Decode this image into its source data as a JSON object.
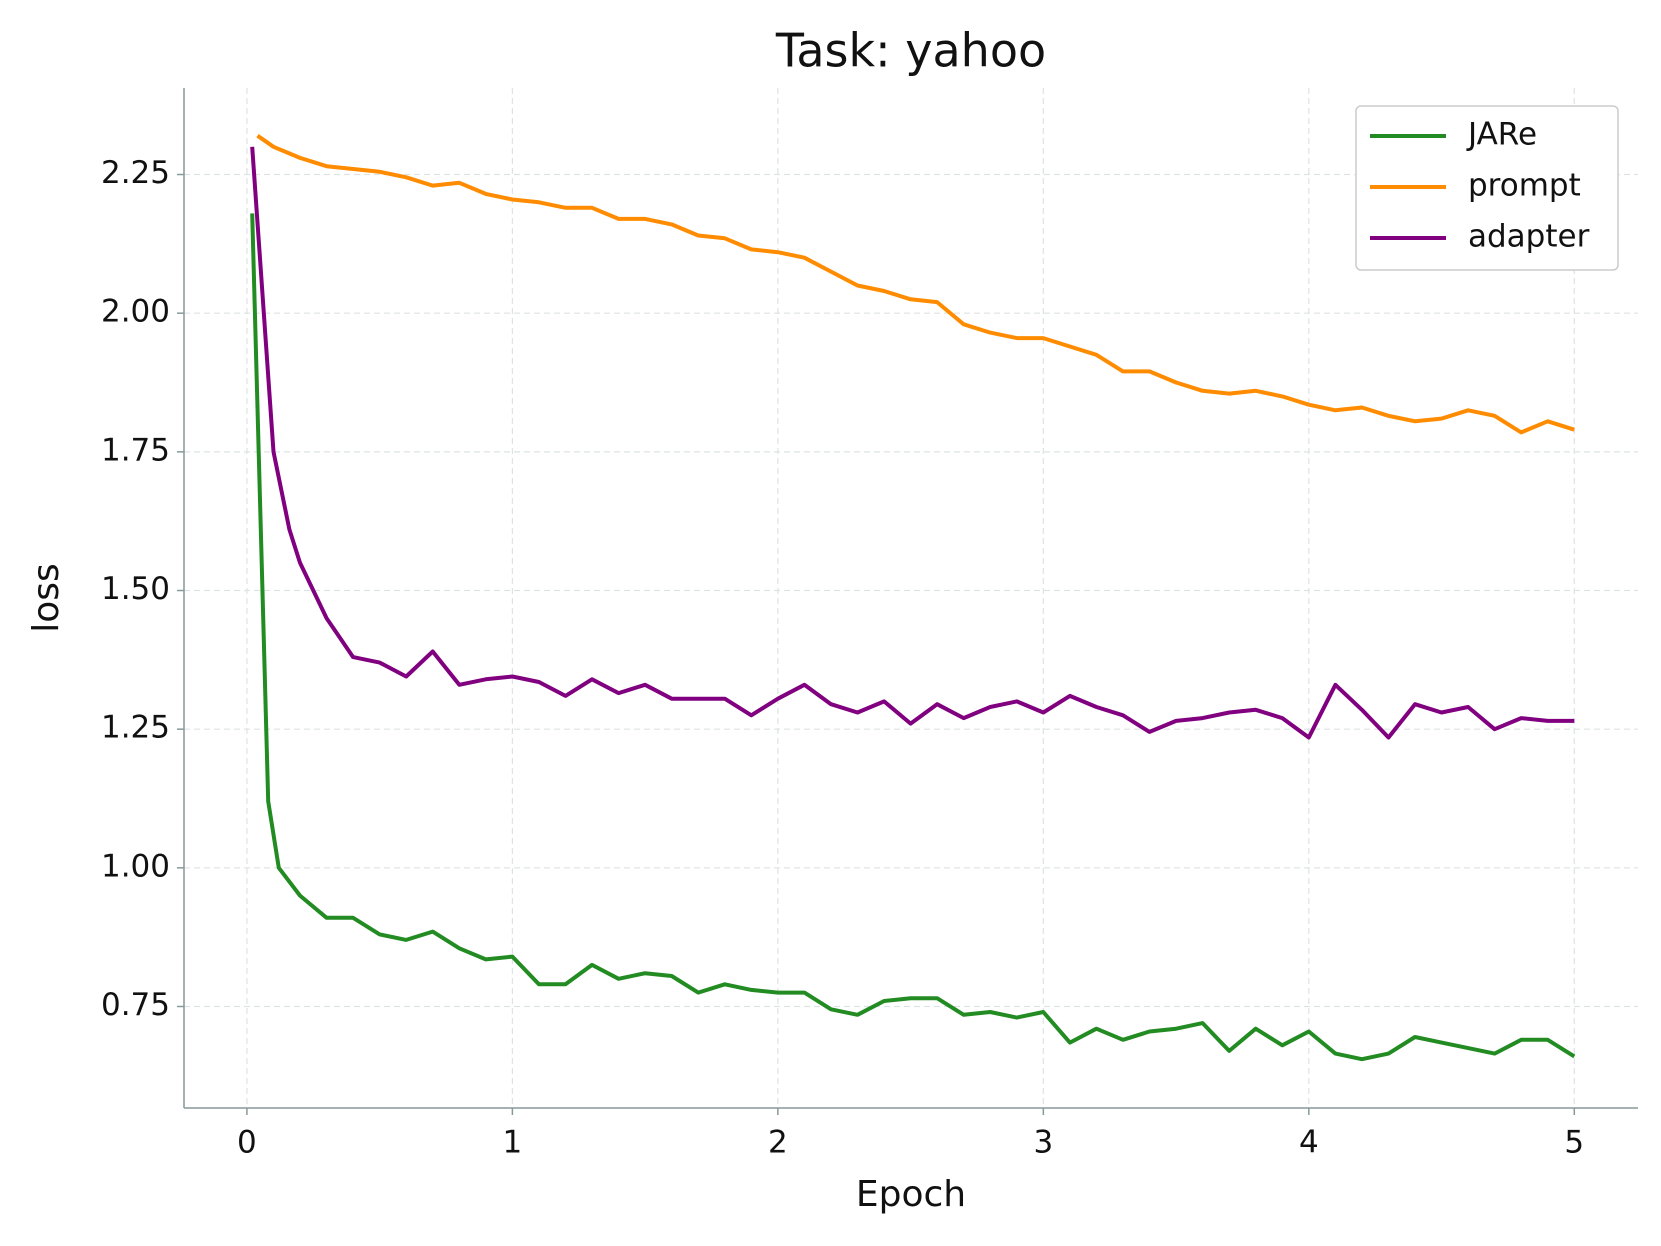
{
  "chart_data": {
    "type": "line",
    "title": "Task: yahoo",
    "x_label": "Epoch",
    "y_label": "loss",
    "xlim": [
      -0.237,
      5.24
    ],
    "ylim": [
      0.567,
      2.406
    ],
    "xticks": [
      0,
      1,
      2,
      3,
      4,
      5
    ],
    "yticks": [
      0.75,
      {
        "value": 1,
        "label": "1.00"
      },
      1.25,
      {
        "value": 1.5,
        "label": "1.50"
      },
      1.75,
      {
        "value": 2,
        "label": "2.00"
      },
      2.25
    ],
    "grid": true,
    "legend": "upper right",
    "series": [
      {
        "name": "JARe",
        "color": "#228b22",
        "x": [
          0.02,
          0.08,
          0.12,
          0.2,
          0.3,
          0.4,
          0.5,
          0.6,
          0.7,
          0.8,
          0.9,
          1.0,
          1.1,
          1.2,
          1.3,
          1.4,
          1.5,
          1.6,
          1.7,
          1.8,
          1.9,
          2.0,
          2.1,
          2.2,
          2.3,
          2.4,
          2.5,
          2.6,
          2.7,
          2.8,
          2.9,
          3.0,
          3.1,
          3.2,
          3.3,
          3.4,
          3.5,
          3.6,
          3.7,
          3.8,
          3.9,
          4.0,
          4.1,
          4.2,
          4.3,
          4.4,
          4.5,
          4.6,
          4.7,
          4.8,
          4.9,
          5.0
        ],
        "values": [
          2.18,
          1.12,
          1.0,
          0.95,
          0.91,
          0.91,
          0.88,
          0.87,
          0.885,
          0.855,
          0.835,
          0.84,
          0.79,
          0.79,
          0.825,
          0.8,
          0.81,
          0.805,
          0.775,
          0.79,
          0.78,
          0.775,
          0.775,
          0.745,
          0.735,
          0.76,
          0.765,
          0.765,
          0.735,
          0.74,
          0.73,
          0.74,
          0.685,
          0.71,
          0.69,
          0.705,
          0.71,
          0.72,
          0.67,
          0.71,
          0.68,
          0.705,
          0.665,
          0.655,
          0.665,
          0.695,
          0.685,
          0.675,
          0.665,
          0.69,
          0.69,
          0.66
        ]
      },
      {
        "name": "prompt",
        "color": "#ff8c00",
        "x": [
          0.04,
          0.1,
          0.2,
          0.3,
          0.4,
          0.5,
          0.6,
          0.7,
          0.8,
          0.9,
          1.0,
          1.1,
          1.2,
          1.3,
          1.4,
          1.5,
          1.6,
          1.7,
          1.8,
          1.9,
          2.0,
          2.1,
          2.2,
          2.3,
          2.4,
          2.5,
          2.6,
          2.7,
          2.8,
          2.9,
          3.0,
          3.1,
          3.2,
          3.3,
          3.4,
          3.5,
          3.6,
          3.7,
          3.8,
          3.9,
          4.0,
          4.1,
          4.2,
          4.3,
          4.4,
          4.5,
          4.6,
          4.7,
          4.8,
          4.9,
          5.0
        ],
        "values": [
          2.32,
          2.3,
          2.28,
          2.265,
          2.26,
          2.255,
          2.245,
          2.23,
          2.235,
          2.215,
          2.205,
          2.2,
          2.19,
          2.19,
          2.17,
          2.17,
          2.16,
          2.14,
          2.135,
          2.115,
          2.11,
          2.1,
          2.075,
          2.05,
          2.04,
          2.025,
          2.02,
          1.98,
          1.965,
          1.955,
          1.955,
          1.94,
          1.925,
          1.895,
          1.895,
          1.875,
          1.86,
          1.855,
          1.86,
          1.85,
          1.835,
          1.825,
          1.83,
          1.815,
          1.805,
          1.81,
          1.825,
          1.815,
          1.785,
          1.805,
          1.79
        ]
      },
      {
        "name": "adapter",
        "color": "#800080",
        "x": [
          0.02,
          0.1,
          0.16,
          0.2,
          0.3,
          0.4,
          0.5,
          0.6,
          0.7,
          0.8,
          0.9,
          1.0,
          1.1,
          1.2,
          1.3,
          1.4,
          1.5,
          1.6,
          1.7,
          1.8,
          1.9,
          2.0,
          2.1,
          2.2,
          2.3,
          2.4,
          2.5,
          2.6,
          2.7,
          2.8,
          2.9,
          3.0,
          3.1,
          3.2,
          3.3,
          3.4,
          3.5,
          3.6,
          3.7,
          3.8,
          3.9,
          4.0,
          4.1,
          4.2,
          4.3,
          4.4,
          4.5,
          4.6,
          4.7,
          4.8,
          4.9,
          5.0
        ],
        "values": [
          2.3,
          1.75,
          1.61,
          1.55,
          1.45,
          1.38,
          1.37,
          1.345,
          1.39,
          1.33,
          1.34,
          1.345,
          1.335,
          1.31,
          1.34,
          1.315,
          1.33,
          1.305,
          1.305,
          1.305,
          1.275,
          1.305,
          1.33,
          1.295,
          1.28,
          1.3,
          1.26,
          1.295,
          1.27,
          1.29,
          1.3,
          1.28,
          1.31,
          1.29,
          1.275,
          1.245,
          1.265,
          1.27,
          1.28,
          1.285,
          1.27,
          1.235,
          1.33,
          1.285,
          1.235,
          1.295,
          1.28,
          1.29,
          1.25,
          1.27,
          1.265,
          1.265
        ]
      }
    ]
  }
}
